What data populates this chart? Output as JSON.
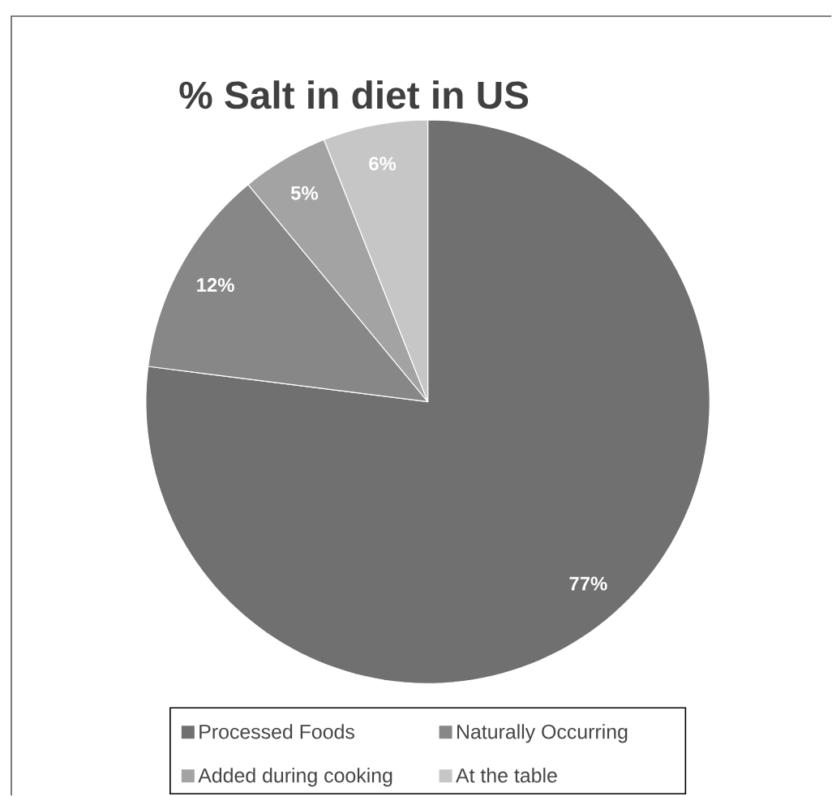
{
  "chart_data": {
    "type": "pie",
    "title": "% Salt in diet in US",
    "categories": [
      "Processed Foods",
      "Naturally Occurring",
      "Added during cooking",
      "At the table"
    ],
    "values": [
      77,
      12,
      5,
      6
    ],
    "colors": [
      "#707070",
      "#878787",
      "#a3a3a3",
      "#c6c6c6"
    ],
    "value_labels": [
      "77%",
      "12%",
      "5%",
      "6%"
    ],
    "legend": "bottom"
  }
}
